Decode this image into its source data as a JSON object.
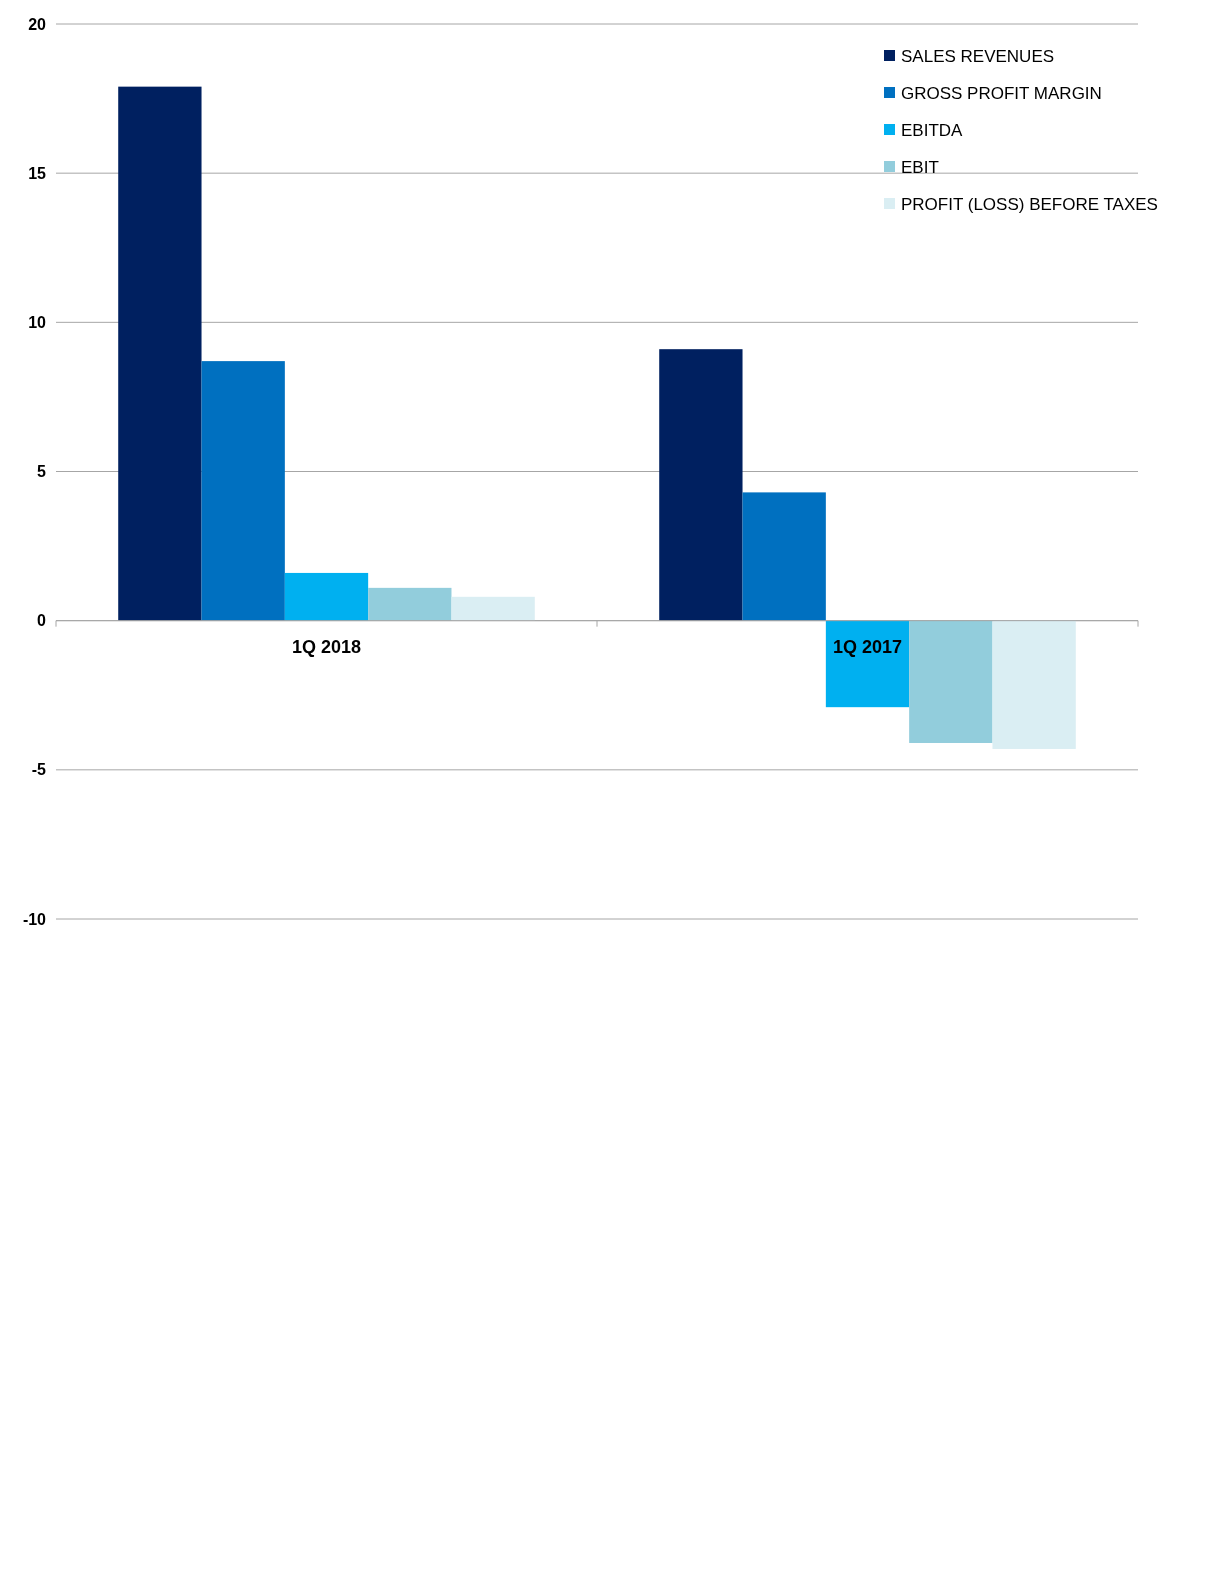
{
  "chart_data": {
    "type": "bar",
    "categories": [
      "1Q 2018",
      "1Q 2017"
    ],
    "series": [
      {
        "name": "SALES REVENUES",
        "color": "#002060",
        "values": [
          17.9,
          9.1
        ]
      },
      {
        "name": "GROSS PROFIT MARGIN",
        "color": "#0070c0",
        "values": [
          8.7,
          4.3
        ]
      },
      {
        "name": "EBITDA",
        "color": "#00b0f0",
        "values": [
          1.6,
          -2.9
        ]
      },
      {
        "name": "EBIT",
        "color": "#92cddc",
        "values": [
          1.1,
          -4.1
        ]
      },
      {
        "name": "PROFIT (LOSS) BEFORE TAXES",
        "color": "#daeef3",
        "values": [
          0.8,
          -4.3
        ]
      }
    ],
    "ylim": [
      -10,
      20
    ],
    "yticks": [
      -10,
      -5,
      0,
      5,
      10,
      15,
      20
    ],
    "grid": "y",
    "legend": "top right"
  }
}
